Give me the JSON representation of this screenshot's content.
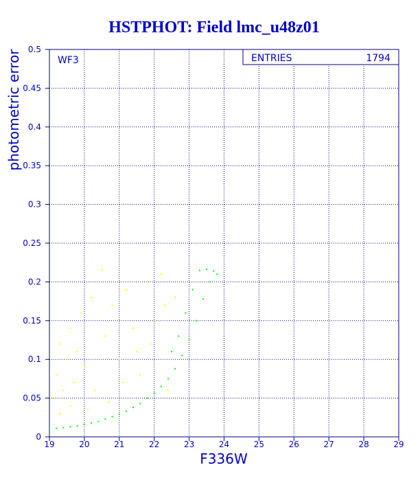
{
  "chart_data": {
    "type": "scatter",
    "title": "HSTPHOT: Field lmc_u48z01",
    "xlabel": "F336W",
    "ylabel": "photometric error",
    "panel_label": "WF3",
    "stats": {
      "label": "ENTRIES",
      "value": "1794"
    },
    "xlim": [
      19,
      29
    ],
    "ylim": [
      0,
      0.5
    ],
    "x_ticks": [
      19,
      20,
      21,
      22,
      23,
      24,
      25,
      26,
      27,
      28,
      29
    ],
    "y_ticks": [
      0,
      0.05,
      0.1,
      0.15,
      0.2,
      0.25,
      0.3,
      0.35,
      0.4,
      0.45,
      0.5
    ],
    "x_tick_labels": [
      "19",
      "20",
      "21",
      "22",
      "23",
      "24",
      "25",
      "26",
      "27",
      "28",
      "29"
    ],
    "y_tick_labels": [
      "0",
      "0.05",
      "0.1",
      "0.15",
      "0.2",
      "0.25",
      "0.3",
      "0.35",
      "0.4",
      "0.45",
      "0.5"
    ],
    "grid": true,
    "colors": {
      "text": "#0000cc",
      "frame": "#000080",
      "grid": "#000080",
      "main_series": "#00ee00",
      "outlier_series": "#ffff00"
    },
    "series": [
      {
        "color": "#00ee00",
        "points": [
          [
            19.0,
            0.01
          ],
          [
            19.2,
            0.011
          ],
          [
            19.4,
            0.012
          ],
          [
            19.6,
            0.013
          ],
          [
            19.8,
            0.014
          ],
          [
            20.0,
            0.016
          ],
          [
            20.2,
            0.018
          ],
          [
            20.4,
            0.02
          ],
          [
            20.6,
            0.023
          ],
          [
            20.8,
            0.026
          ],
          [
            21.0,
            0.029
          ],
          [
            21.2,
            0.033
          ],
          [
            21.4,
            0.038
          ],
          [
            21.6,
            0.043
          ],
          [
            21.8,
            0.05
          ],
          [
            22.0,
            0.056
          ],
          [
            22.2,
            0.065
          ],
          [
            22.4,
            0.075
          ],
          [
            22.6,
            0.088
          ],
          [
            22.8,
            0.105
          ],
          [
            23.0,
            0.125
          ],
          [
            23.2,
            0.15
          ],
          [
            23.4,
            0.178
          ],
          [
            23.6,
            0.2
          ],
          [
            23.8,
            0.21
          ],
          [
            23.3,
            0.215
          ],
          [
            23.5,
            0.216
          ],
          [
            23.7,
            0.214
          ],
          [
            23.1,
            0.19
          ],
          [
            22.9,
            0.16
          ],
          [
            22.7,
            0.13
          ],
          [
            22.5,
            0.11
          ]
        ]
      },
      {
        "color": "#ffff00",
        "points": [
          [
            19.1,
            0.05
          ],
          [
            19.2,
            0.08
          ],
          [
            19.3,
            0.12
          ],
          [
            19.4,
            0.06
          ],
          [
            19.5,
            0.1
          ],
          [
            19.6,
            0.14
          ],
          [
            19.7,
            0.07
          ],
          [
            19.8,
            0.11
          ],
          [
            19.9,
            0.16
          ],
          [
            20.0,
            0.09
          ],
          [
            20.2,
            0.18
          ],
          [
            20.3,
            0.06
          ],
          [
            20.5,
            0.215
          ],
          [
            20.6,
            0.13
          ],
          [
            20.8,
            0.17
          ],
          [
            21.0,
            0.1
          ],
          [
            21.2,
            0.19
          ],
          [
            21.4,
            0.14
          ],
          [
            21.6,
            0.08
          ],
          [
            21.8,
            0.2
          ],
          [
            22.0,
            0.15
          ],
          [
            22.2,
            0.21
          ],
          [
            22.4,
            0.06
          ],
          [
            22.6,
            0.18
          ],
          [
            19.3,
            0.03
          ],
          [
            19.6,
            0.04
          ],
          [
            20.1,
            0.035
          ],
          [
            20.7,
            0.045
          ],
          [
            21.1,
            0.07
          ],
          [
            21.5,
            0.11
          ],
          [
            21.9,
            0.12
          ],
          [
            22.3,
            0.17
          ]
        ]
      }
    ]
  }
}
